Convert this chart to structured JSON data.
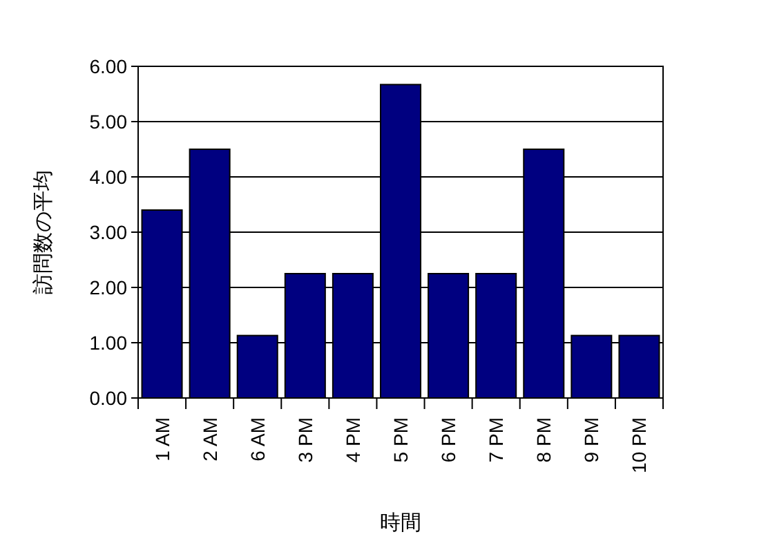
{
  "chart_data": {
    "type": "bar",
    "xlabel": "時間",
    "ylabel": "訪問数の平均",
    "categories": [
      "1 AM",
      "2 AM",
      "6 AM",
      "3 PM",
      "4 PM",
      "5 PM",
      "6 PM",
      "7 PM",
      "8 PM",
      "9 PM",
      "10 PM"
    ],
    "values": [
      3.4,
      4.5,
      1.13,
      2.25,
      2.25,
      5.67,
      2.25,
      2.25,
      4.5,
      1.13,
      1.13
    ],
    "color": "#000080",
    "ylim": [
      0,
      6
    ],
    "yticks": [
      {
        "value": 0,
        "label": "0.00"
      },
      {
        "value": 1,
        "label": "1.00"
      },
      {
        "value": 2,
        "label": "2.00"
      },
      {
        "value": 3,
        "label": "3.00"
      },
      {
        "value": 4,
        "label": "4.00"
      },
      {
        "value": 5,
        "label": "5.00"
      },
      {
        "value": 6,
        "label": "6.00"
      }
    ],
    "grid": "y"
  }
}
